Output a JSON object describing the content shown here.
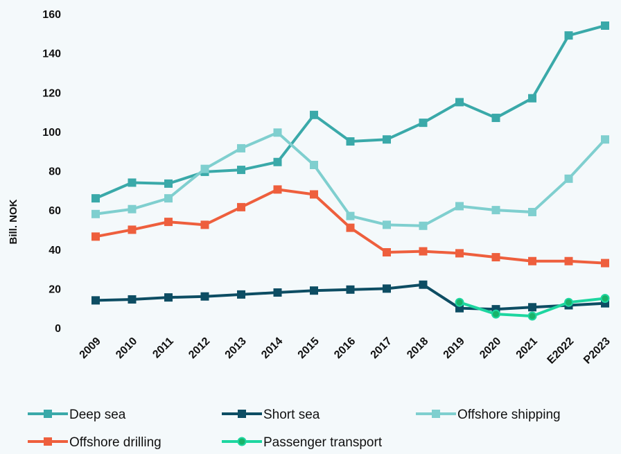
{
  "chart_data": {
    "type": "line",
    "y_label": "Bill. NOK",
    "categories": [
      "2009",
      "2010",
      "2011",
      "2012",
      "2013",
      "2014",
      "2015",
      "2016",
      "2017",
      "2018",
      "2019",
      "2020",
      "2021",
      "E2022",
      "P2023"
    ],
    "series": [
      {
        "name": "Deep sea",
        "color": "#3aa9a9",
        "marker": "square",
        "values": [
          66,
          74,
          73.5,
          79.5,
          80.5,
          84.5,
          108.5,
          95,
          96,
          104.5,
          115,
          107,
          117,
          149,
          154
        ]
      },
      {
        "name": "Short sea",
        "color": "#0d4d63",
        "marker": "square",
        "values": [
          14,
          14.5,
          15.5,
          16,
          17,
          18,
          19,
          19.5,
          20,
          22,
          10,
          9.5,
          10.5,
          11.5,
          12.5
        ]
      },
      {
        "name": "Offshore shipping",
        "color": "#7fcfcf",
        "marker": "square",
        "values": [
          58,
          60.5,
          66,
          81,
          91.5,
          99.5,
          83,
          57,
          52.5,
          52,
          62,
          60,
          59,
          76,
          96
        ]
      },
      {
        "name": "Offshore drilling",
        "color": "#ee5f3d",
        "marker": "square",
        "values": [
          46.5,
          50,
          54,
          52.5,
          61.5,
          70.5,
          68,
          51,
          38.5,
          39,
          38,
          36,
          34,
          34,
          33
        ]
      },
      {
        "name": "Passenger transport",
        "color": "#1ed6a0",
        "marker": "circle",
        "values": [
          null,
          null,
          null,
          null,
          null,
          null,
          null,
          null,
          null,
          null,
          13,
          7,
          6,
          13,
          15
        ]
      }
    ],
    "ylim": [
      0,
      160
    ],
    "yticks": [
      0,
      20,
      40,
      60,
      80,
      100,
      120,
      140,
      160
    ],
    "grid": false
  }
}
